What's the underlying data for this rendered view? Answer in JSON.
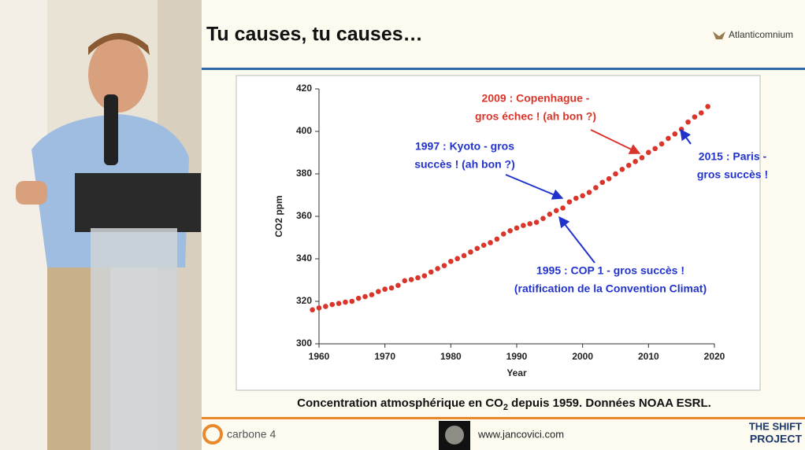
{
  "slide": {
    "title": "Tu causes, tu causes…",
    "logo": "Atlanticomnium"
  },
  "chart_data": {
    "type": "scatter",
    "x_label": "Year",
    "y_label": "CO2 ppm",
    "x": [
      1959,
      1960,
      1961,
      1962,
      1963,
      1964,
      1965,
      1966,
      1967,
      1968,
      1969,
      1970,
      1971,
      1972,
      1973,
      1974,
      1975,
      1976,
      1977,
      1978,
      1979,
      1980,
      1981,
      1982,
      1983,
      1984,
      1985,
      1986,
      1987,
      1988,
      1989,
      1990,
      1991,
      1992,
      1993,
      1994,
      1995,
      1996,
      1997,
      1998,
      1999,
      2000,
      2001,
      2002,
      2003,
      2004,
      2005,
      2006,
      2007,
      2008,
      2009,
      2010,
      2011,
      2012,
      2013,
      2014,
      2015,
      2016,
      2017,
      2018,
      2019
    ],
    "values": [
      316.0,
      316.9,
      317.6,
      318.5,
      319.0,
      319.6,
      320.0,
      321.4,
      322.2,
      323.1,
      324.6,
      325.7,
      326.3,
      327.5,
      329.7,
      330.2,
      331.1,
      332.0,
      333.8,
      335.4,
      336.8,
      338.8,
      340.1,
      341.5,
      343.2,
      344.9,
      346.4,
      347.6,
      349.3,
      351.7,
      353.2,
      354.5,
      355.7,
      356.5,
      357.2,
      359.0,
      361.0,
      362.7,
      363.9,
      366.8,
      368.5,
      369.7,
      371.3,
      373.5,
      376.0,
      377.7,
      380.0,
      382.1,
      384.0,
      385.8,
      387.6,
      390.1,
      391.9,
      394.1,
      396.7,
      398.8,
      401.0,
      404.4,
      406.8,
      408.7,
      411.7
    ],
    "color": "#d9352a",
    "xlim": [
      1960,
      2020
    ],
    "xticks": [
      1960,
      1970,
      1980,
      1990,
      2000,
      2010,
      2020
    ],
    "ylim": [
      300,
      420
    ],
    "yticks": [
      300,
      320,
      340,
      360,
      380,
      400,
      420
    ],
    "grid": false,
    "annotations": [
      {
        "lines": [
          "2009 : Copenhague -",
          "gros échec ! (ah bon ?)"
        ],
        "color": "#d9352a"
      },
      {
        "lines": [
          "1997 : Kyoto - gros",
          "succès ! (ah bon ?)"
        ],
        "color": "#2233cc"
      },
      {
        "lines": [
          "1995 : COP 1 - gros succès !",
          "(ratification de la Convention Climat)"
        ],
        "color": "#2233cc"
      },
      {
        "lines": [
          "2015 : Paris -",
          "gros succès !"
        ],
        "color": "#2233cc"
      }
    ]
  },
  "caption": {
    "before": "Concentration atmosphérique en CO",
    "sub": "2",
    "after": " depuis 1959. Données NOAA ESRL."
  },
  "footer": {
    "left": "carbone 4",
    "center": "www.jancovici.com",
    "right_top": "THE SHIFT",
    "right_bottom": "PROJECT"
  }
}
